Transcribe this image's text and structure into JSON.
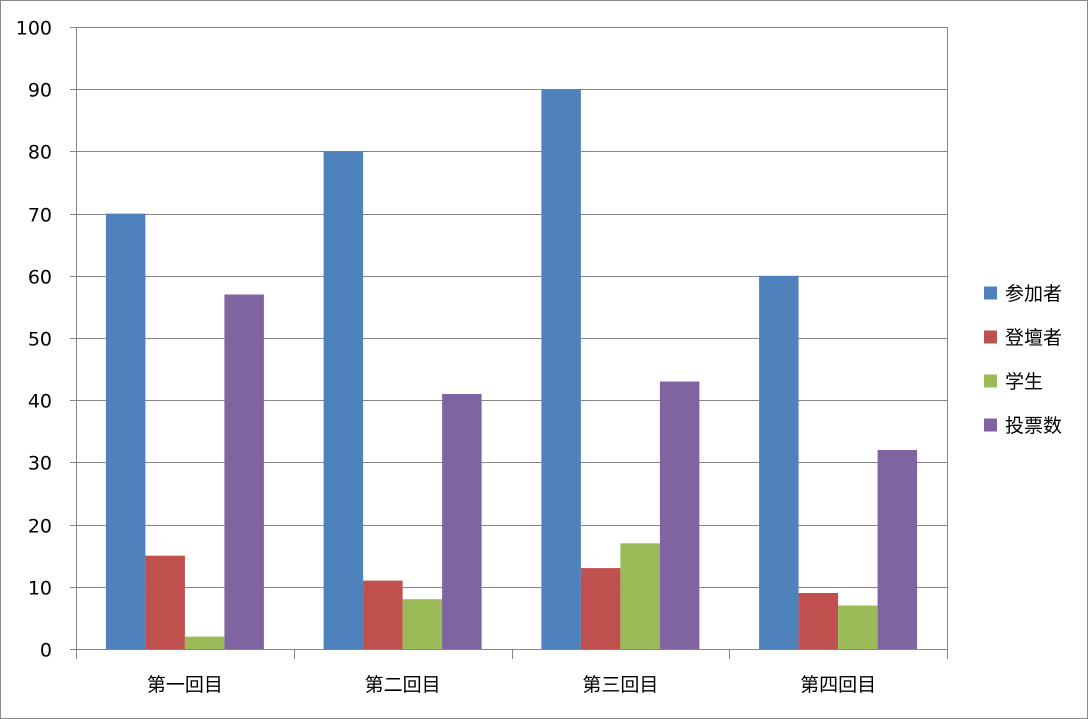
{
  "chart_data": {
    "type": "bar",
    "title": "",
    "xlabel": "",
    "ylabel": "",
    "ylim": [
      0,
      100
    ],
    "ytick_step": 10,
    "grid": true,
    "legend_position": "right",
    "categories": [
      "第一回目",
      "第二回目",
      "第三回目",
      "第四回目"
    ],
    "series": [
      {
        "name": "参加者",
        "color": "#4f81bd",
        "values": [
          70,
          80,
          90,
          60
        ]
      },
      {
        "name": "登壇者",
        "color": "#c0504d",
        "values": [
          15,
          11,
          13,
          9
        ]
      },
      {
        "name": "学生",
        "color": "#9bbb59",
        "values": [
          2,
          8,
          17,
          7
        ]
      },
      {
        "name": "投票数",
        "color": "#8064a2",
        "values": [
          57,
          41,
          43,
          32
        ]
      }
    ]
  }
}
